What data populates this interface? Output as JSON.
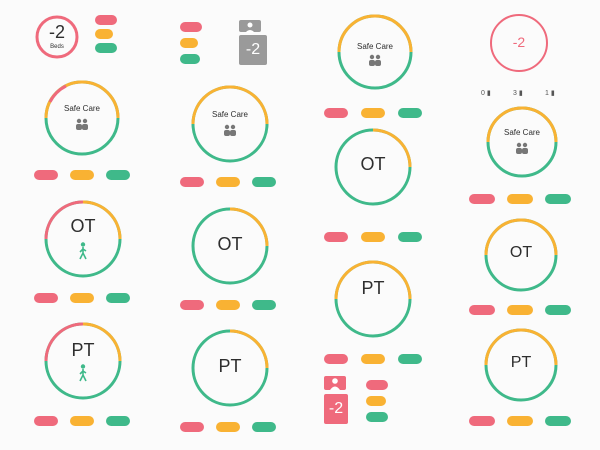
{
  "colors": {
    "red": "#ef6a7c",
    "orange": "#f9b233",
    "green": "#3fb98a",
    "grey": "#9a9a9a"
  },
  "badge_beds": {
    "value": "-2",
    "label": "Beds"
  },
  "badge_grey": {
    "value": "-2"
  },
  "badge_red_large": {
    "value": "-2"
  },
  "badge_red_small": {
    "value": "-2"
  },
  "stat_row": {
    "a": "0",
    "b": "3",
    "c": "1"
  },
  "rings": {
    "safe_care_1": "Safe Care",
    "safe_care_2": "Safe Care",
    "safe_care_3": "Safe Care",
    "safe_care_4": "Safe Care",
    "ot_1": "OT",
    "ot_2": "OT",
    "ot_3": "OT",
    "ot_4": "OT",
    "pt_1": "PT",
    "pt_2": "PT",
    "pt_3": "PT",
    "pt_4": "PT"
  }
}
